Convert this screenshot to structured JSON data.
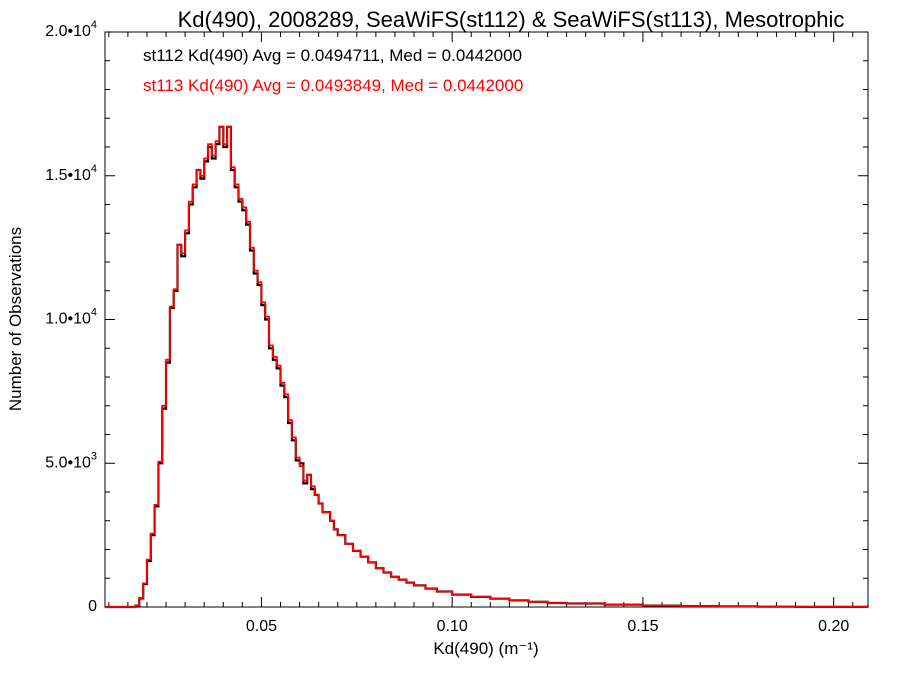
{
  "chart_data": {
    "type": "histogram",
    "title": "Kd(490), 2008289, SeaWiFS(st112) & SeaWiFS(st113), Mesotrophic",
    "xlabel": "Kd(490) (m⁻¹)",
    "ylabel": "Number of Observations",
    "xlim": [
      0.009,
      0.209
    ],
    "ylim": [
      0,
      20000
    ],
    "x_ticks": [
      {
        "value": 0.05,
        "label": "0.05"
      },
      {
        "value": 0.1,
        "label": "0.10"
      },
      {
        "value": 0.15,
        "label": "0.15"
      },
      {
        "value": 0.2,
        "label": "0.20"
      }
    ],
    "y_ticks": [
      {
        "value": 0,
        "mant": "0",
        "exp": ""
      },
      {
        "value": 5000,
        "mant": "5.0•10",
        "exp": "3"
      },
      {
        "value": 10000,
        "mant": "1.0•10",
        "exp": "4"
      },
      {
        "value": 15000,
        "mant": "1.5•10",
        "exp": "4"
      },
      {
        "value": 20000,
        "mant": "2.0•10",
        "exp": "4"
      }
    ],
    "annotations": [
      {
        "text": "st112 Kd(490) Avg = 0.0494711, Med = 0.0442000",
        "color": "#000000"
      },
      {
        "text": "st113 Kd(490) Avg = 0.0493849, Med = 0.0442000",
        "color": "#ff0000"
      }
    ],
    "series": [
      {
        "color": "#000000",
        "x": [
          0.009,
          0.01,
          0.011,
          0.012,
          0.013,
          0.014,
          0.015,
          0.016,
          0.017,
          0.018,
          0.019,
          0.02,
          0.021,
          0.022,
          0.023,
          0.024,
          0.025,
          0.026,
          0.027,
          0.028,
          0.029,
          0.03,
          0.031,
          0.032,
          0.033,
          0.034,
          0.035,
          0.036,
          0.037,
          0.038,
          0.039,
          0.04,
          0.041,
          0.042,
          0.043,
          0.044,
          0.045,
          0.046,
          0.047,
          0.048,
          0.049,
          0.05,
          0.051,
          0.052,
          0.053,
          0.054,
          0.055,
          0.056,
          0.057,
          0.058,
          0.059,
          0.06,
          0.061,
          0.062,
          0.063,
          0.064,
          0.065,
          0.066,
          0.067,
          0.068,
          0.069,
          0.07,
          0.072,
          0.074,
          0.076,
          0.078,
          0.08,
          0.082,
          0.084,
          0.086,
          0.088,
          0.09,
          0.093,
          0.096,
          0.1,
          0.105,
          0.11,
          0.115,
          0.12,
          0.125,
          0.13,
          0.14,
          0.15,
          0.16,
          0.17,
          0.18,
          0.19,
          0.2,
          0.209
        ],
        "values": [
          0,
          0,
          0,
          0,
          0,
          0,
          0,
          0,
          50,
          300,
          800,
          1600,
          2500,
          3500,
          5000,
          6900,
          8500,
          10400,
          11000,
          12600,
          12200,
          13000,
          14000,
          14600,
          15200,
          14900,
          15500,
          16000,
          15600,
          16100,
          16700,
          16000,
          16700,
          15200,
          14600,
          14100,
          13800,
          13300,
          12400,
          11600,
          11200,
          10500,
          10000,
          9000,
          8600,
          8300,
          7700,
          7300,
          6400,
          5800,
          5100,
          5000,
          4300,
          4600,
          4100,
          3900,
          3600,
          3300,
          3300,
          3000,
          2700,
          2500,
          2200,
          1950,
          1750,
          1550,
          1350,
          1200,
          1050,
          950,
          850,
          750,
          640,
          540,
          430,
          350,
          290,
          230,
          180,
          140,
          120,
          80,
          50,
          30,
          20,
          10,
          5,
          2,
          0
        ]
      },
      {
        "color": "#ff0000",
        "x": [
          0.009,
          0.01,
          0.011,
          0.012,
          0.013,
          0.014,
          0.015,
          0.016,
          0.017,
          0.018,
          0.019,
          0.02,
          0.021,
          0.022,
          0.023,
          0.024,
          0.025,
          0.026,
          0.027,
          0.028,
          0.029,
          0.03,
          0.031,
          0.032,
          0.033,
          0.034,
          0.035,
          0.036,
          0.037,
          0.038,
          0.039,
          0.04,
          0.041,
          0.042,
          0.043,
          0.044,
          0.045,
          0.046,
          0.047,
          0.048,
          0.049,
          0.05,
          0.051,
          0.052,
          0.053,
          0.054,
          0.055,
          0.056,
          0.057,
          0.058,
          0.059,
          0.06,
          0.061,
          0.062,
          0.063,
          0.064,
          0.065,
          0.066,
          0.067,
          0.068,
          0.069,
          0.07,
          0.072,
          0.074,
          0.076,
          0.078,
          0.08,
          0.082,
          0.084,
          0.086,
          0.088,
          0.09,
          0.093,
          0.096,
          0.1,
          0.105,
          0.11,
          0.115,
          0.12,
          0.125,
          0.13,
          0.14,
          0.15,
          0.16,
          0.17,
          0.18,
          0.19,
          0.2,
          0.209
        ],
        "values": [
          0,
          0,
          0,
          0,
          0,
          0,
          0,
          0,
          60,
          320,
          820,
          1650,
          2550,
          3550,
          5050,
          7000,
          8600,
          10450,
          11050,
          12600,
          12300,
          13100,
          14100,
          14700,
          15200,
          15000,
          15600,
          16100,
          15700,
          16200,
          16700,
          16100,
          16700,
          15300,
          14700,
          14200,
          13900,
          13400,
          12500,
          11700,
          11300,
          10600,
          10100,
          9100,
          8700,
          8400,
          7800,
          7400,
          6500,
          5900,
          5200,
          4900,
          4400,
          4600,
          4200,
          3900,
          3600,
          3300,
          3300,
          3000,
          2700,
          2500,
          2200,
          1950,
          1750,
          1550,
          1350,
          1200,
          1050,
          950,
          850,
          750,
          640,
          540,
          430,
          350,
          290,
          230,
          180,
          140,
          120,
          80,
          50,
          30,
          20,
          10,
          5,
          2,
          0
        ]
      }
    ],
    "grid": false,
    "legend": "top-left annotations"
  }
}
